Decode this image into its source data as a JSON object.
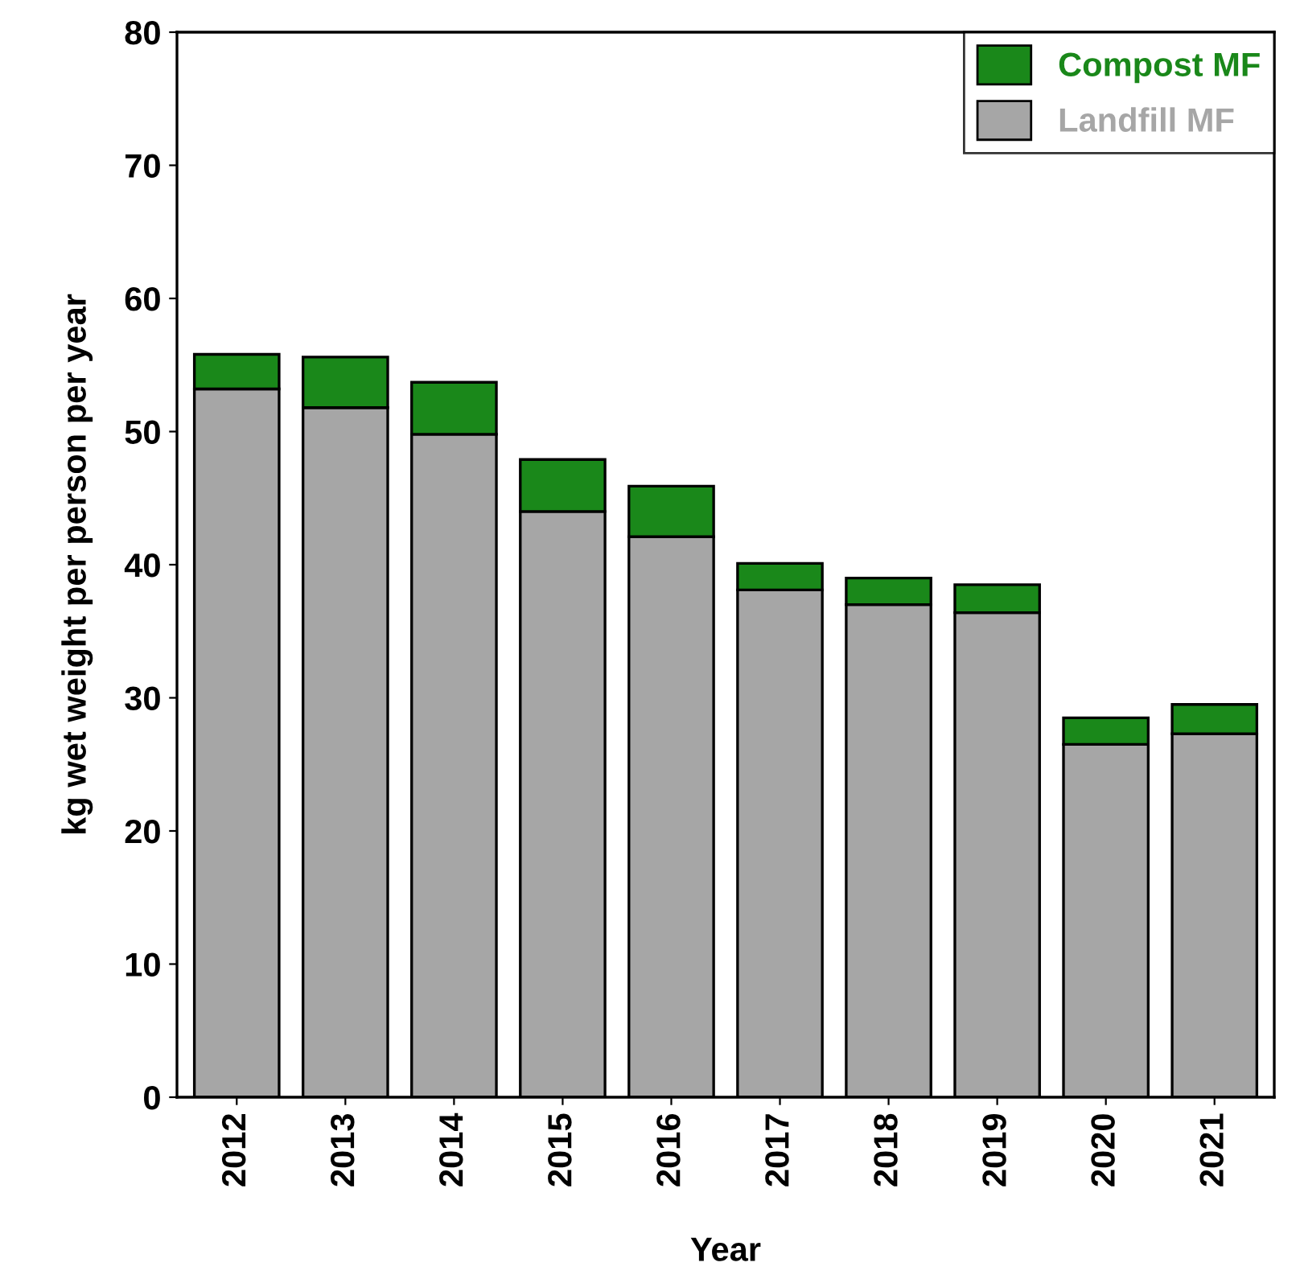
{
  "chart_data": {
    "type": "bar",
    "stacked": true,
    "xlabel": "Year",
    "ylabel": "kg wet weight per person per year",
    "categories": [
      "2012",
      "2013",
      "2014",
      "2015",
      "2016",
      "2017",
      "2018",
      "2019",
      "2020",
      "2021"
    ],
    "series": [
      {
        "name": "Landfill MF",
        "color": "#a6a6a6",
        "values": [
          53.2,
          51.8,
          49.8,
          44.0,
          42.1,
          38.1,
          37.0,
          36.4,
          26.5,
          27.3
        ]
      },
      {
        "name": "Compost MF",
        "color": "#1a881a",
        "values": [
          2.6,
          3.8,
          3.9,
          3.9,
          3.8,
          2.0,
          2.0,
          2.1,
          2.0,
          2.2
        ]
      }
    ],
    "ylim": [
      0,
      80
    ],
    "yticks": [
      0,
      10,
      20,
      30,
      40,
      50,
      60,
      70,
      80
    ],
    "grid": false,
    "legend": "top right"
  }
}
